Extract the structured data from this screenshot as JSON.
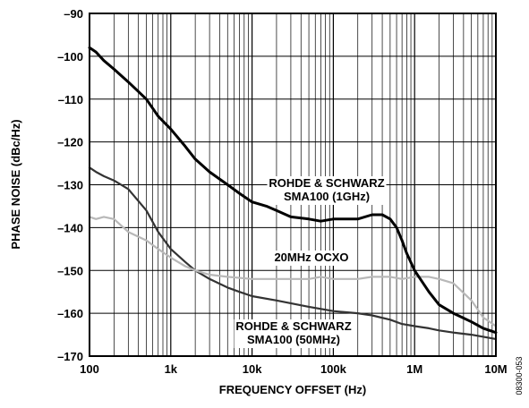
{
  "chart_data": {
    "type": "line",
    "xscale": "log",
    "xlim": [
      100,
      10000000
    ],
    "ylim": [
      -170,
      -90
    ],
    "grid": true,
    "xlabel": "FREQUENCY OFFSET (Hz)",
    "ylabel": "PHASE NOISE (dBc/Hz)",
    "x_ticks": [
      100,
      1000,
      10000,
      100000,
      1000000,
      10000000
    ],
    "x_tick_labels": [
      "100",
      "1k",
      "10k",
      "100k",
      "1M",
      "10M"
    ],
    "y_ticks": [
      -170,
      -160,
      -150,
      -140,
      -130,
      -120,
      -110,
      -100,
      -90
    ],
    "y_tick_labels": [
      "–170",
      "–160",
      "–150",
      "–140",
      "–130",
      "–120",
      "–110",
      "–100",
      "–90"
    ],
    "series": [
      {
        "name": "ROHDE & SCHWARZ SMA100 (1GHz)",
        "color": "#000000",
        "x": [
          100,
          120,
          150,
          200,
          300,
          500,
          700,
          1000,
          1500,
          2000,
          3000,
          5000,
          7000,
          10000,
          15000,
          20000,
          30000,
          50000,
          70000,
          100000,
          150000,
          200000,
          300000,
          400000,
          500000,
          600000,
          700000,
          800000,
          1000000,
          1500000,
          2000000,
          3000000,
          5000000,
          7000000,
          10000000
        ],
        "y": [
          -98,
          -99,
          -101,
          -103,
          -106,
          -110,
          -114,
          -117,
          -121,
          -124,
          -127,
          -130,
          -132,
          -134,
          -135,
          -136,
          -137.5,
          -138,
          -138.5,
          -138,
          -138,
          -138,
          -137,
          -137,
          -138,
          -140,
          -143,
          -146,
          -150,
          -155,
          -158,
          -160,
          -162,
          -163.5,
          -164.5
        ]
      },
      {
        "name": "ROHDE & SCHWARZ SMA100 (50MHz)",
        "color": "#333333",
        "x": [
          100,
          120,
          150,
          200,
          300,
          500,
          700,
          1000,
          1500,
          2000,
          3000,
          5000,
          7000,
          10000,
          20000,
          50000,
          100000,
          200000,
          300000,
          500000,
          700000,
          1000000,
          1500000,
          2000000,
          3000000,
          5000000,
          10000000
        ],
        "y": [
          -126,
          -127,
          -128,
          -129,
          -131,
          -136,
          -141,
          -145,
          -148,
          -150,
          -152,
          -154,
          -155,
          -156,
          -157,
          -158.5,
          -159.5,
          -160,
          -160.5,
          -161.5,
          -162.5,
          -163,
          -163.5,
          -164,
          -164.5,
          -165,
          -166
        ]
      },
      {
        "name": "20MHz OCXO",
        "color": "#b8b8b8",
        "x": [
          100,
          120,
          150,
          200,
          300,
          500,
          700,
          1000,
          1500,
          2000,
          3000,
          5000,
          10000,
          20000,
          30000,
          50000,
          70000,
          100000,
          200000,
          300000,
          500000,
          700000,
          1000000,
          1500000,
          2000000,
          3000000,
          5000000,
          7000000,
          10000000
        ],
        "y": [
          -137.5,
          -138,
          -137.5,
          -138,
          -141,
          -143,
          -145,
          -147,
          -149,
          -150,
          -151,
          -151.5,
          -152,
          -152,
          -152,
          -152,
          -151.5,
          -152,
          -152,
          -151.5,
          -151.5,
          -152,
          -151.5,
          -151.5,
          -152,
          -153,
          -157,
          -161,
          -163
        ]
      }
    ],
    "annotations": [
      {
        "lines": [
          "ROHDE & SCHWARZ",
          "SMA100 (1GHz)"
        ]
      },
      {
        "lines": [
          "20MHz OCXO"
        ]
      },
      {
        "lines": [
          "ROHDE & SCHWARZ",
          "SMA100 (50MHz)"
        ]
      }
    ],
    "figure_id": "08300-053"
  }
}
